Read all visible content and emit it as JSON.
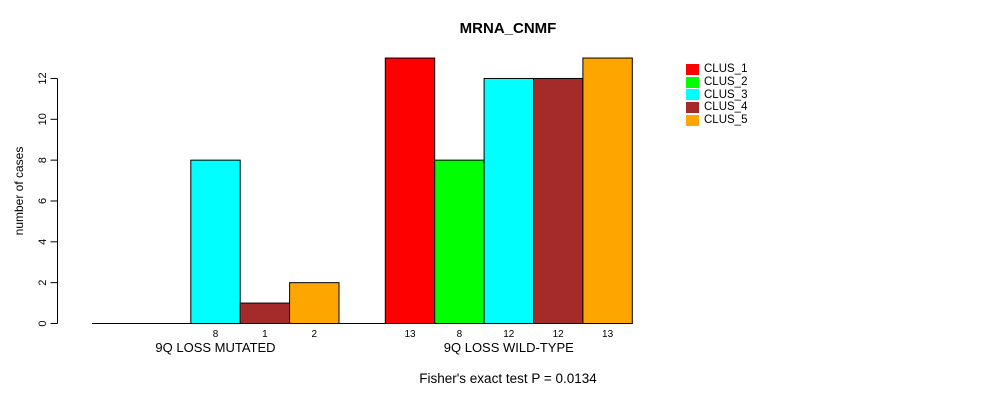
{
  "chart_data": {
    "type": "bar",
    "title": "MRNA_CNMF",
    "ylabel": "number of cases",
    "footer": "Fisher's exact test P = 0.0134",
    "groups": [
      "9Q LOSS MUTATED",
      "9Q LOSS WILD-TYPE"
    ],
    "series": [
      {
        "name": "CLUS_1",
        "color": "#FF0000",
        "values": [
          0,
          13
        ]
      },
      {
        "name": "CLUS_2",
        "color": "#00FF00",
        "values": [
          0,
          8
        ]
      },
      {
        "name": "CLUS_3",
        "color": "#00FFFF",
        "values": [
          8,
          12
        ]
      },
      {
        "name": "CLUS_4",
        "color": "#A52A2A",
        "values": [
          1,
          12
        ]
      },
      {
        "name": "CLUS_5",
        "color": "#FFA500",
        "values": [
          2,
          13
        ]
      }
    ],
    "bar_labels": [
      [
        "",
        "",
        "8",
        "1",
        "2"
      ],
      [
        "13",
        "8",
        "12",
        "12",
        "13"
      ]
    ],
    "yticks": [
      0,
      2,
      4,
      6,
      8,
      10,
      12
    ],
    "ylim": [
      0,
      13
    ],
    "grid": false,
    "legend_position": "right"
  }
}
